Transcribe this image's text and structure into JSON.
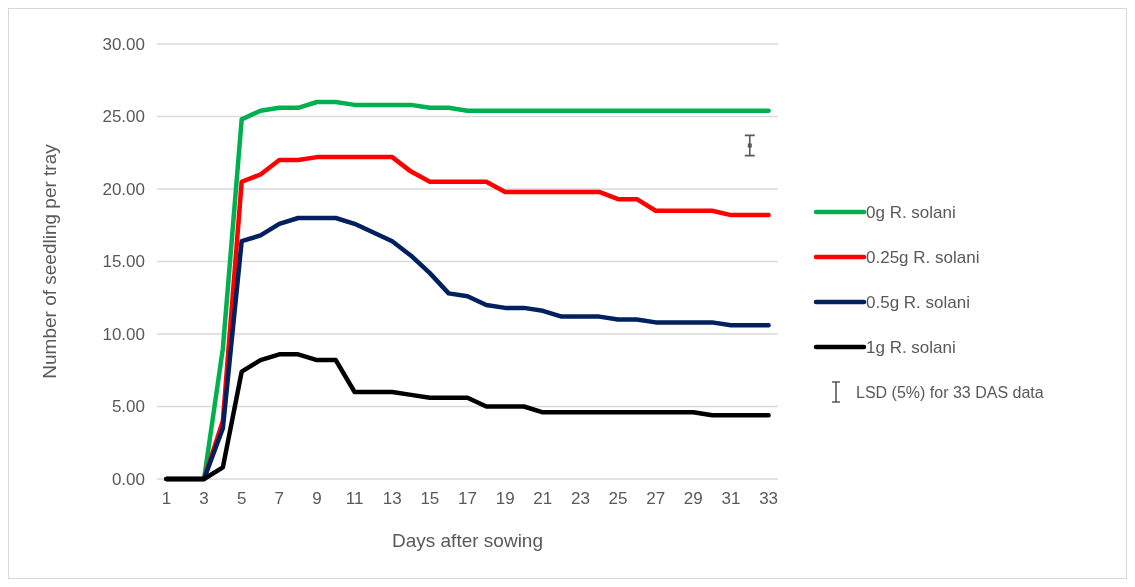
{
  "chart_data": {
    "type": "line",
    "xlabel": "Days after sowing",
    "ylabel": "Number of seedling per tray",
    "x": [
      1,
      2,
      3,
      4,
      5,
      6,
      7,
      8,
      9,
      10,
      11,
      12,
      13,
      14,
      15,
      16,
      17,
      18,
      19,
      20,
      21,
      22,
      23,
      24,
      25,
      26,
      27,
      28,
      29,
      30,
      31,
      32,
      33
    ],
    "xlim": [
      0.5,
      33.5
    ],
    "xticks": [
      1,
      3,
      5,
      7,
      9,
      11,
      13,
      15,
      17,
      19,
      21,
      23,
      25,
      27,
      29,
      31,
      33
    ],
    "ylim": [
      0,
      30
    ],
    "yticks": [
      {
        "value": 0,
        "label": "0.00"
      },
      {
        "value": 5,
        "label": "5.00"
      },
      {
        "value": 10,
        "label": "10.00"
      },
      {
        "value": 15,
        "label": "15.00"
      },
      {
        "value": 20,
        "label": "20.00"
      },
      {
        "value": 25,
        "label": "25.00"
      },
      {
        "value": 30,
        "label": "30.00"
      }
    ],
    "grid": "y",
    "legend": "right",
    "marker": "none",
    "line_style": "solid",
    "series": [
      {
        "name": "0g R. solani",
        "color": "#00b050",
        "values": [
          0,
          0,
          0,
          9,
          24.8,
          25.4,
          25.6,
          25.6,
          26,
          26,
          25.8,
          25.8,
          25.8,
          25.8,
          25.6,
          25.6,
          25.4,
          25.4,
          25.4,
          25.4,
          25.4,
          25.4,
          25.4,
          25.4,
          25.4,
          25.4,
          25.4,
          25.4,
          25.4,
          25.4,
          25.4,
          25.4,
          25.4
        ]
      },
      {
        "name": "0.25g R. solani",
        "color": "#ff0000",
        "values": [
          0,
          0,
          0,
          4,
          20.5,
          21,
          22,
          22,
          22.2,
          22.2,
          22.2,
          22.2,
          22.2,
          21.2,
          20.5,
          20.5,
          20.5,
          20.5,
          19.8,
          19.8,
          19.8,
          19.8,
          19.8,
          19.8,
          19.3,
          19.3,
          18.5,
          18.5,
          18.5,
          18.5,
          18.2,
          18.2,
          18.2
        ]
      },
      {
        "name": "0.5g R. solani",
        "color": "#002060",
        "values": [
          0,
          0,
          0,
          3.5,
          16.4,
          16.8,
          17.6,
          18,
          18,
          18,
          17.6,
          17,
          16.4,
          15.4,
          14.2,
          12.8,
          12.6,
          12,
          11.8,
          11.8,
          11.6,
          11.2,
          11.2,
          11.2,
          11,
          11,
          10.8,
          10.8,
          10.8,
          10.8,
          10.6,
          10.6,
          10.6
        ]
      },
      {
        "name": "1g R. solani",
        "color": "#000000",
        "values": [
          0,
          0,
          0,
          0.8,
          7.4,
          8.2,
          8.6,
          8.6,
          8.2,
          8.2,
          6,
          6,
          6,
          5.8,
          5.6,
          5.6,
          5.6,
          5,
          5,
          5,
          4.6,
          4.6,
          4.6,
          4.6,
          4.6,
          4.6,
          4.6,
          4.6,
          4.6,
          4.4,
          4.4,
          4.4,
          4.4
        ]
      },
      {
        "name": "LSD (5%) for 33 DAS data",
        "type": "scatter",
        "marker": "square",
        "color": "#595959",
        "x": [
          32
        ],
        "values": [
          23
        ],
        "errors": [
          0.7
        ]
      }
    ]
  }
}
